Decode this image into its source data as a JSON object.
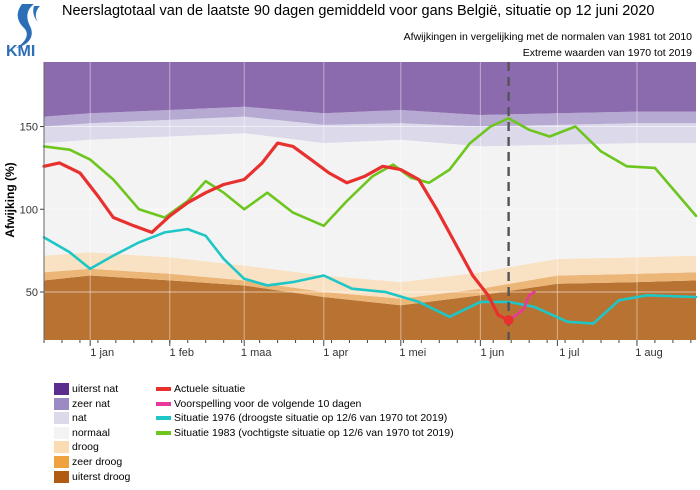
{
  "header": {
    "org": "KMI",
    "title": "Neerslagtotaal van de laatste 90 dagen gemiddeld voor gans België, situatie op 12 juni 2020",
    "subtitle1": "Afwijkingen in vergelijking met de normalen van 1981 tot 2010",
    "subtitle2": "Extreme waarden van 1970 tot 2019"
  },
  "chart_data": {
    "type": "area",
    "ylabel": "Afwijking (%)",
    "xlabel": "",
    "x_start": "2019-12-14",
    "x_end": "2020-08-24",
    "x_ticks": [
      {
        "label": "1 jan",
        "date": "2020-01-01"
      },
      {
        "label": "1 feb",
        "date": "2020-02-01"
      },
      {
        "label": "1 maa",
        "date": "2020-03-01"
      },
      {
        "label": "1 apr",
        "date": "2020-04-01"
      },
      {
        "label": "1 mei",
        "date": "2020-05-01"
      },
      {
        "label": "1 jun",
        "date": "2020-06-01"
      },
      {
        "label": "1 jul",
        "date": "2020-07-01"
      },
      {
        "label": "1 aug",
        "date": "2020-08-01"
      }
    ],
    "y_ticks": [
      50,
      100,
      150
    ],
    "ylim": [
      21,
      189
    ],
    "grid": true,
    "reference_date": "2020-06-12",
    "bands": {
      "x": [
        "2019-12-14",
        "2020-01-01",
        "2020-02-01",
        "2020-03-01",
        "2020-04-01",
        "2020-05-01",
        "2020-06-01",
        "2020-07-01",
        "2020-08-01",
        "2020-08-24"
      ],
      "series": [
        {
          "name": "uiterst droog",
          "color": "#b87333",
          "bottom": [
            21,
            21,
            21,
            21,
            21,
            21,
            21,
            21,
            21,
            21
          ],
          "top": [
            57,
            60,
            57,
            54,
            47,
            42,
            48,
            55,
            56,
            57
          ]
        },
        {
          "name": "zeer droog",
          "color": "#ecb678",
          "bottom": [
            57,
            60,
            57,
            54,
            47,
            42,
            48,
            55,
            56,
            57
          ],
          "top": [
            62,
            64,
            61,
            57,
            50,
            46,
            52,
            60,
            61,
            62
          ]
        },
        {
          "name": "droog",
          "color": "#f9e1c4",
          "bottom": [
            62,
            64,
            61,
            57,
            50,
            46,
            52,
            60,
            61,
            62
          ],
          "top": [
            72,
            74,
            71,
            66,
            60,
            56,
            62,
            70,
            71,
            72
          ]
        },
        {
          "name": "normaal",
          "color": "#f4f3f3",
          "bottom": [
            72,
            74,
            71,
            66,
            60,
            56,
            62,
            70,
            71,
            72
          ],
          "top": [
            140,
            142,
            144,
            146,
            140,
            142,
            138,
            139,
            140,
            140
          ]
        },
        {
          "name": "nat",
          "color": "#dcd9eb",
          "bottom": [
            140,
            142,
            144,
            146,
            140,
            142,
            138,
            139,
            140,
            140
          ],
          "top": [
            150,
            152,
            154,
            156,
            151,
            152,
            150,
            151,
            152,
            152
          ]
        },
        {
          "name": "zeer nat",
          "color": "#b6a9d2",
          "bottom": [
            150,
            152,
            154,
            156,
            151,
            152,
            150,
            151,
            152,
            152
          ],
          "top": [
            156,
            158,
            160,
            162,
            158,
            160,
            157,
            158,
            159,
            159
          ]
        },
        {
          "name": "uiterst nat",
          "color": "#8c6aae",
          "bottom": [
            156,
            158,
            160,
            162,
            158,
            160,
            157,
            158,
            159,
            159
          ],
          "top": [
            189,
            189,
            189,
            189,
            189,
            189,
            189,
            189,
            189,
            189
          ]
        }
      ]
    },
    "lines": [
      {
        "name": "Actuele situatie",
        "color": "#e8312f",
        "x": [
          "2019-12-14",
          "2019-12-20",
          "2019-12-28",
          "2020-01-04",
          "2020-01-10",
          "2020-01-18",
          "2020-01-25",
          "2020-02-01",
          "2020-02-08",
          "2020-02-15",
          "2020-02-22",
          "2020-03-01",
          "2020-03-08",
          "2020-03-14",
          "2020-03-20",
          "2020-03-27",
          "2020-04-03",
          "2020-04-10",
          "2020-04-17",
          "2020-04-24",
          "2020-05-01",
          "2020-05-08",
          "2020-05-15",
          "2020-05-22",
          "2020-05-29",
          "2020-06-04",
          "2020-06-08",
          "2020-06-12"
        ],
        "y": [
          126,
          128,
          122,
          108,
          95,
          90,
          86,
          96,
          104,
          110,
          115,
          118,
          128,
          140,
          138,
          130,
          122,
          116,
          120,
          126,
          124,
          118,
          100,
          80,
          60,
          48,
          36,
          33
        ]
      },
      {
        "name": "Voorspelling voor de volgende 10 dagen",
        "color": "#e8389b",
        "x": [
          "2020-06-12",
          "2020-06-15",
          "2020-06-18",
          "2020-06-20",
          "2020-06-22"
        ],
        "y": [
          33,
          36,
          40,
          48,
          50
        ]
      },
      {
        "name": "Situatie 1976 (droogste situatie op 12/6 van 1970 tot 2019)",
        "color": "#1ec6c6",
        "x": [
          "2019-12-14",
          "2019-12-24",
          "2020-01-01",
          "2020-01-10",
          "2020-01-20",
          "2020-01-30",
          "2020-02-08",
          "2020-02-15",
          "2020-02-22",
          "2020-03-01",
          "2020-03-10",
          "2020-03-20",
          "2020-04-01",
          "2020-04-12",
          "2020-04-25",
          "2020-05-08",
          "2020-05-20",
          "2020-06-01",
          "2020-06-12",
          "2020-06-22",
          "2020-07-05",
          "2020-07-15",
          "2020-07-25",
          "2020-08-05",
          "2020-08-24"
        ],
        "y": [
          83,
          74,
          64,
          72,
          80,
          86,
          88,
          84,
          70,
          58,
          54,
          56,
          60,
          52,
          50,
          44,
          35,
          44,
          44,
          41,
          32,
          31,
          45,
          48,
          47
        ]
      },
      {
        "name": "Situatie 1983 (vochtigste situatie op 12/6 van 1970 tot 2019)",
        "color": "#6cc61e",
        "x": [
          "2019-12-14",
          "2019-12-24",
          "2020-01-01",
          "2020-01-10",
          "2020-01-20",
          "2020-01-30",
          "2020-02-08",
          "2020-02-15",
          "2020-02-22",
          "2020-03-01",
          "2020-03-10",
          "2020-03-20",
          "2020-04-01",
          "2020-04-10",
          "2020-04-20",
          "2020-04-28",
          "2020-05-05",
          "2020-05-12",
          "2020-05-20",
          "2020-05-28",
          "2020-06-05",
          "2020-06-12",
          "2020-06-20",
          "2020-06-28",
          "2020-07-08",
          "2020-07-18",
          "2020-07-28",
          "2020-08-08",
          "2020-08-24"
        ],
        "y": [
          138,
          136,
          130,
          118,
          100,
          95,
          105,
          117,
          110,
          100,
          110,
          98,
          90,
          105,
          120,
          127,
          119,
          116,
          124,
          140,
          150,
          155,
          148,
          144,
          150,
          135,
          126,
          125,
          96
        ]
      }
    ]
  },
  "legend": {
    "bands": [
      {
        "label": "uiterst nat",
        "color": "#5a2d8f"
      },
      {
        "label": "zeer nat",
        "color": "#9b8ac4"
      },
      {
        "label": "nat",
        "color": "#dcd9eb"
      },
      {
        "label": "normaal",
        "color": "#f4f3f3"
      },
      {
        "label": "droog",
        "color": "#fbdcb2"
      },
      {
        "label": "zeer droog",
        "color": "#f0a23e"
      },
      {
        "label": "uiterst droog",
        "color": "#b05a14"
      }
    ],
    "lines": [
      {
        "label": "Actuele situatie",
        "color": "#e8312f"
      },
      {
        "label": "Voorspelling voor de volgende 10 dagen",
        "color": "#e8389b"
      },
      {
        "label": "Situatie 1976 (droogste situatie op 12/6 van 1970 tot 2019)",
        "color": "#1ec6c6"
      },
      {
        "label": "Situatie 1983 (vochtigste situatie op 12/6 van 1970 tot 2019)",
        "color": "#6cc61e"
      }
    ]
  }
}
